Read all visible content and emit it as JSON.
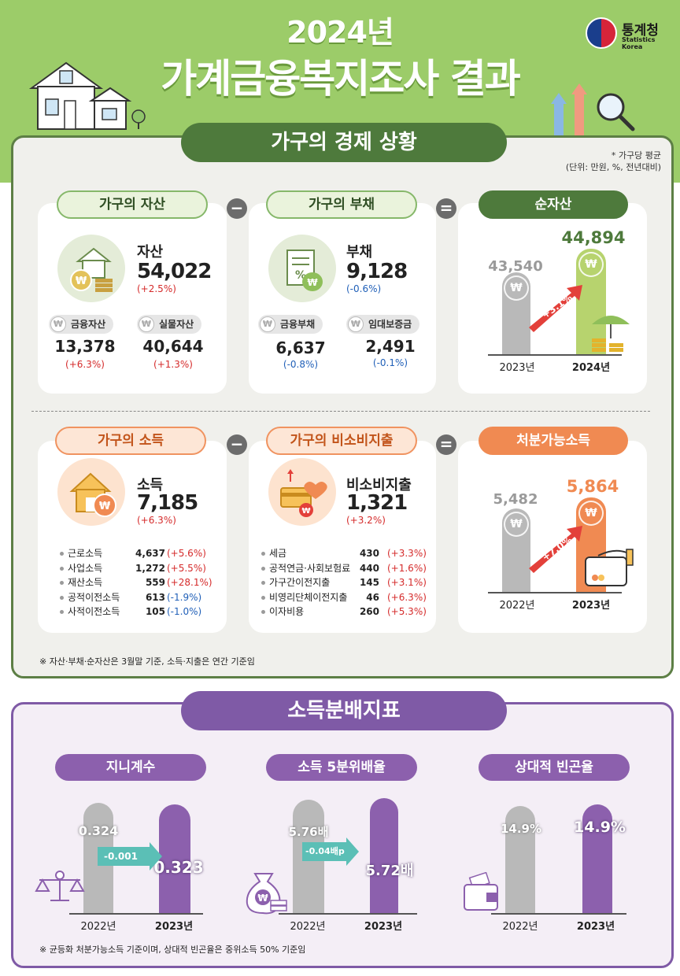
{
  "header": {
    "year_title": "2024년",
    "main_title": "가계금융복지조사 결과",
    "logo_text": "통계청",
    "logo_sub": "Statistics Korea"
  },
  "section1": {
    "title": "가구의 경제 상황",
    "unit_note_1": "* 가구당 평균",
    "unit_note_2": "(단위: 만원, %, 전년대비)",
    "operator_minus": "−",
    "operator_equals": "=",
    "assets": {
      "tag": "가구의 자산",
      "label": "자산",
      "value": "54,022",
      "change": "(+2.5%)",
      "sub": [
        {
          "label": "금융자산",
          "value": "13,378",
          "change": "(+6.3%)"
        },
        {
          "label": "실물자산",
          "value": "40,644",
          "change": "(+1.3%)"
        }
      ]
    },
    "debt": {
      "tag": "가구의 부채",
      "label": "부채",
      "value": "9,128",
      "change": "(-0.6%)",
      "sub": [
        {
          "label": "금융부채",
          "value": "6,637",
          "change": "(-0.8%)"
        },
        {
          "label": "임대보증금",
          "value": "2,491",
          "change": "(-0.1%)"
        }
      ]
    },
    "net_assets": {
      "tag": "순자산",
      "prev_value": "43,540",
      "curr_value": "44,894",
      "growth": "+3.1%",
      "prev_year": "2023년",
      "curr_year": "2024년"
    },
    "income": {
      "tag": "가구의 소득",
      "label": "소득",
      "value": "7,185",
      "change": "(+6.3%)",
      "items": [
        {
          "name": "근로소득",
          "value": "4,637",
          "change": "(+5.6%)",
          "dir": "up"
        },
        {
          "name": "사업소득",
          "value": "1,272",
          "change": "(+5.5%)",
          "dir": "up"
        },
        {
          "name": "재산소득",
          "value": "559",
          "change": "(+28.1%)",
          "dir": "up"
        },
        {
          "name": "공적이전소득",
          "value": "613",
          "change": "(-1.9%)",
          "dir": "down"
        },
        {
          "name": "사적이전소득",
          "value": "105",
          "change": "(-1.0%)",
          "dir": "down"
        }
      ]
    },
    "non_consumption": {
      "tag": "가구의 비소비지출",
      "label": "비소비지출",
      "value": "1,321",
      "change": "(+3.2%)",
      "items": [
        {
          "name": "세금",
          "value": "430",
          "change": "(+3.3%)",
          "dir": "up"
        },
        {
          "name": "공적연금·사회보험료",
          "value": "440",
          "change": "(+1.6%)",
          "dir": "up"
        },
        {
          "name": "가구간이전지출",
          "value": "145",
          "change": "(+3.1%)",
          "dir": "up"
        },
        {
          "name": "비영리단체이전지출",
          "value": "46",
          "change": "(+6.3%)",
          "dir": "up"
        },
        {
          "name": "이자비용",
          "value": "260",
          "change": "(+5.3%)",
          "dir": "up"
        }
      ]
    },
    "disposable": {
      "tag": "처분가능소득",
      "prev_value": "5,482",
      "curr_value": "5,864",
      "growth": "+7.0%",
      "prev_year": "2022년",
      "curr_year": "2023년"
    },
    "footnote": "※ 자산·부채·순자산은 3월말 기준, 소득·지출은 연간 기준임"
  },
  "section2": {
    "title": "소득분배지표",
    "gini": {
      "tag": "지니계수",
      "prev_value": "0.324",
      "curr_value": "0.323",
      "change": "-0.001",
      "prev_year": "2022년",
      "curr_year": "2023년"
    },
    "quintile": {
      "tag": "소득 5분위배율",
      "prev_value": "5.76배",
      "curr_value": "5.72배",
      "change": "-0.04배p",
      "prev_year": "2022년",
      "curr_year": "2023년"
    },
    "poverty": {
      "tag": "상대적 빈곤율",
      "prev_value": "14.9%",
      "curr_value": "14.9%",
      "prev_year": "2022년",
      "curr_year": "2023년"
    },
    "footnote": "※ 균등화 처분가능소득 기준이며, 상대적 빈곤율은 중위소득 50% 기준임"
  },
  "colors": {
    "green": "#4e7a3c",
    "light_green": "#9ccc69",
    "orange": "#f08a52",
    "purple": "#7f5aa6",
    "red": "#d52b2b",
    "blue": "#2160b8"
  },
  "icons": [
    "house-icon",
    "won-coin-icon",
    "document-icon",
    "money-bag-icon",
    "umbrella-coins-icon",
    "card-icon",
    "scale-icon",
    "wallet-icon",
    "magnifier-icon"
  ]
}
